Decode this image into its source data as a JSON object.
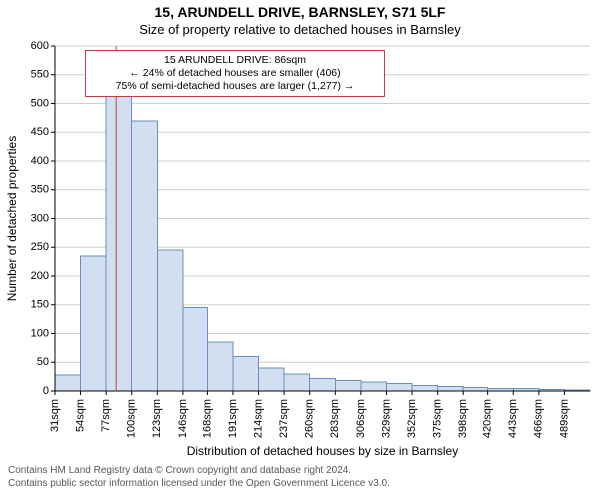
{
  "title_main": "15, ARUNDELL DRIVE, BARNSLEY, S71 5LF",
  "title_sub": "Size of property relative to detached houses in Barnsley",
  "ylabel": "Number of detached properties",
  "xlabel": "Distribution of detached houses by size in Barnsley",
  "footer_l1": "Contains HM Land Registry data © Crown copyright and database right 2024.",
  "footer_l2": "Contains public sector information licensed under the Open Government Licence v3.0.",
  "callout": {
    "l1": "15 ARUNDELL DRIVE: 86sqm",
    "l2": "← 24% of detached houses are smaller (406)",
    "l3": "75% of semi-detached houses are larger (1,277) →",
    "border_color": "#c04048"
  },
  "chart": {
    "type": "histogram",
    "ylim": [
      0,
      600
    ],
    "ytick_step": 50,
    "xlim": [
      31,
      512
    ],
    "xticks": [
      31,
      54,
      77,
      100,
      123,
      146,
      168,
      191,
      214,
      237,
      260,
      283,
      306,
      329,
      352,
      375,
      398,
      420,
      443,
      466,
      489
    ],
    "xtick_suffix": "sqm",
    "bar_fill": "#d2dff0",
    "bar_stroke": "#6a8fbf",
    "axis_color": "#000000",
    "grid_color": "#cfcfcf",
    "background": "#ffffff",
    "marker_line": {
      "x": 86,
      "color": "#c04048",
      "width": 1
    },
    "bin_edges": [
      31,
      54,
      77,
      100,
      123,
      146,
      168,
      191,
      214,
      237,
      260,
      283,
      306,
      329,
      352,
      375,
      398,
      420,
      443,
      466,
      489,
      512
    ],
    "counts": [
      28,
      235,
      550,
      470,
      245,
      145,
      85,
      60,
      40,
      30,
      22,
      18,
      16,
      13,
      10,
      8,
      6,
      4,
      4,
      3,
      2
    ]
  },
  "style": {
    "title_fontsize": 14,
    "subtitle_fontsize": 13,
    "label_fontsize": 12,
    "tick_fontsize": 11,
    "callout_fontsize": 10.5,
    "footer_fontsize": 10,
    "footer_color": "#585858"
  }
}
